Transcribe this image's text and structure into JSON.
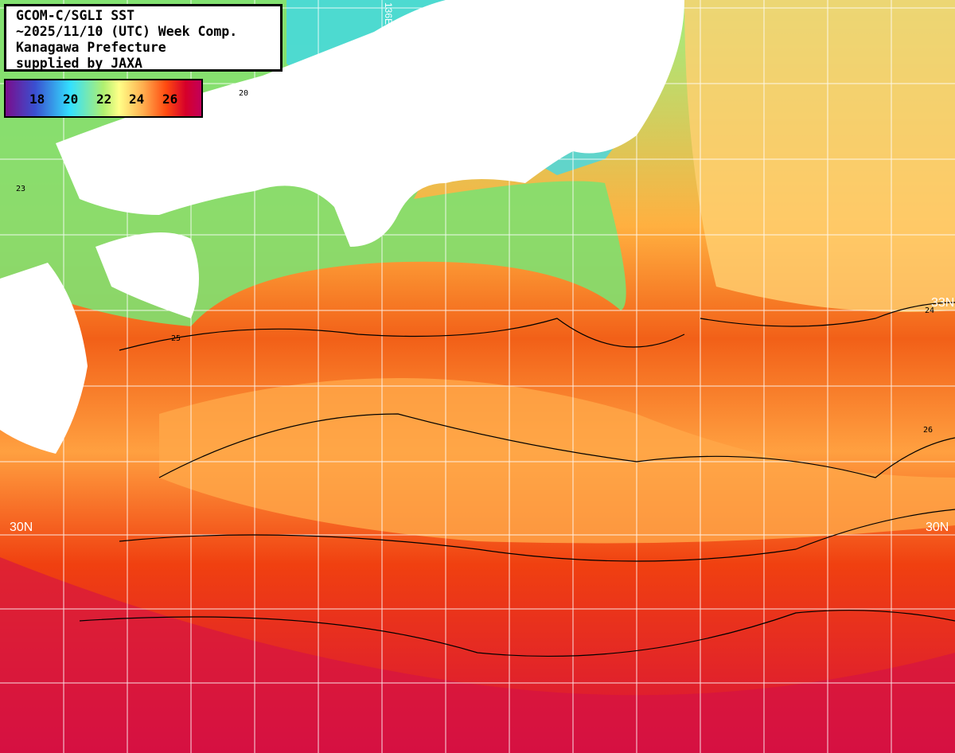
{
  "info_box": {
    "lines": [
      "GCOM-C/SGLI SST",
      "~2025/11/10 (UTC) Week Comp.",
      "Kanagawa Prefecture",
      "supplied by JAXA"
    ]
  },
  "colorbar": {
    "ticks": [
      "18",
      "20",
      "22",
      "24",
      "26"
    ],
    "colors": [
      "#7a0e8c",
      "#3a4fd0",
      "#33e0ff",
      "#b0f070",
      "#ffff88",
      "#ffb050",
      "#ff4a10",
      "#d6002a",
      "#c2005a"
    ]
  },
  "grid_labels": {
    "lat_33": "33N",
    "lat_30_left": "30N",
    "lat_30_right": "30N",
    "lon_top": "136E"
  },
  "contour_labels": [
    "23",
    "24",
    "25",
    "26",
    "20"
  ]
}
